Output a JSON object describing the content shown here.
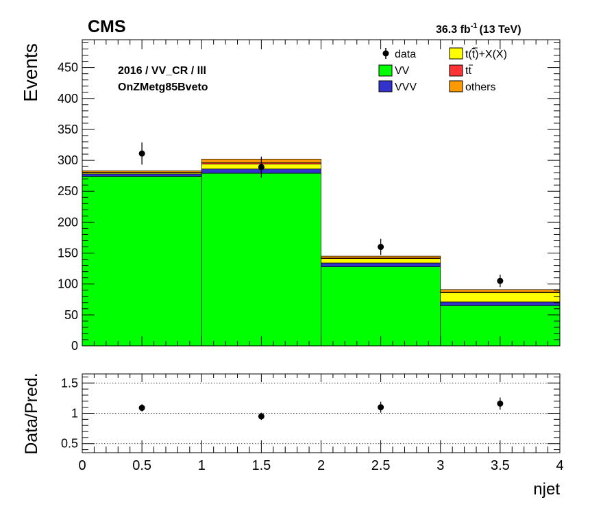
{
  "header": {
    "experiment": "CMS",
    "lumi_value": "36.3 fb",
    "lumi_exponent": "-1",
    "lumi_energy": "(13 TeV)"
  },
  "annotation": {
    "line1": "2016 / VV_CR / lll",
    "line2": "OnZMetg85Bveto"
  },
  "legend": {
    "data": "data",
    "ttx_part1": "t(",
    "ttx_tbar": "t",
    "ttx_part2": ")+X(X)",
    "vv": "VV",
    "tt_t": "t",
    "tt_tbar": "t",
    "vvv": "VVV",
    "others": "others"
  },
  "chart_data": [
    {
      "type": "bar",
      "ylabel": "Events",
      "xlim": [
        0,
        4
      ],
      "ylim": [
        0,
        495
      ],
      "bin_edges": [
        0,
        1,
        2,
        3,
        4
      ],
      "yticks": [
        0,
        50,
        100,
        150,
        200,
        250,
        300,
        350,
        400,
        450
      ],
      "stack_order_bottom_to_top": [
        "VV",
        "VVV",
        "t(t)+X(X)",
        "tt",
        "others"
      ],
      "series": [
        {
          "name": "VV",
          "color": "#00ff00",
          "values": [
            274,
            279,
            128,
            65
          ]
        },
        {
          "name": "VVV",
          "color": "#3333cc",
          "values": [
            4,
            7,
            6,
            6
          ]
        },
        {
          "name": "t(t)+X(X)",
          "color": "#ffff00",
          "values": [
            2,
            8,
            7,
            15
          ]
        },
        {
          "name": "tt",
          "color": "#ff3333",
          "values": [
            1,
            2,
            1,
            1
          ]
        },
        {
          "name": "others",
          "color": "#ff9900",
          "values": [
            2,
            6,
            3,
            4
          ]
        }
      ],
      "data": {
        "name": "data",
        "x": [
          0.5,
          1.5,
          2.5,
          3.5
        ],
        "y": [
          311,
          289,
          160,
          105
        ],
        "err": [
          18,
          17,
          13,
          10
        ]
      }
    },
    {
      "type": "scatter",
      "ylabel": "Data/Pred.",
      "xlabel": "njet",
      "xlim": [
        0,
        4
      ],
      "ylim": [
        0.35,
        1.65
      ],
      "yticks": [
        0.5,
        1,
        1.5
      ],
      "ytick_labels": [
        "0.5",
        "1",
        "1.5"
      ],
      "xticks": [
        0,
        0.5,
        1,
        1.5,
        2,
        2.5,
        3,
        3.5,
        4
      ],
      "xtick_labels": [
        "0",
        "0.5",
        "1",
        "1.5",
        "2",
        "2.5",
        "3",
        "3.5",
        "4"
      ],
      "grid_lines": [
        0.5,
        1,
        1.5
      ],
      "x": [
        0.5,
        1.5,
        2.5,
        3.5
      ],
      "y": [
        1.09,
        0.95,
        1.1,
        1.16
      ],
      "err": [
        0.06,
        0.06,
        0.09,
        0.1
      ]
    }
  ]
}
